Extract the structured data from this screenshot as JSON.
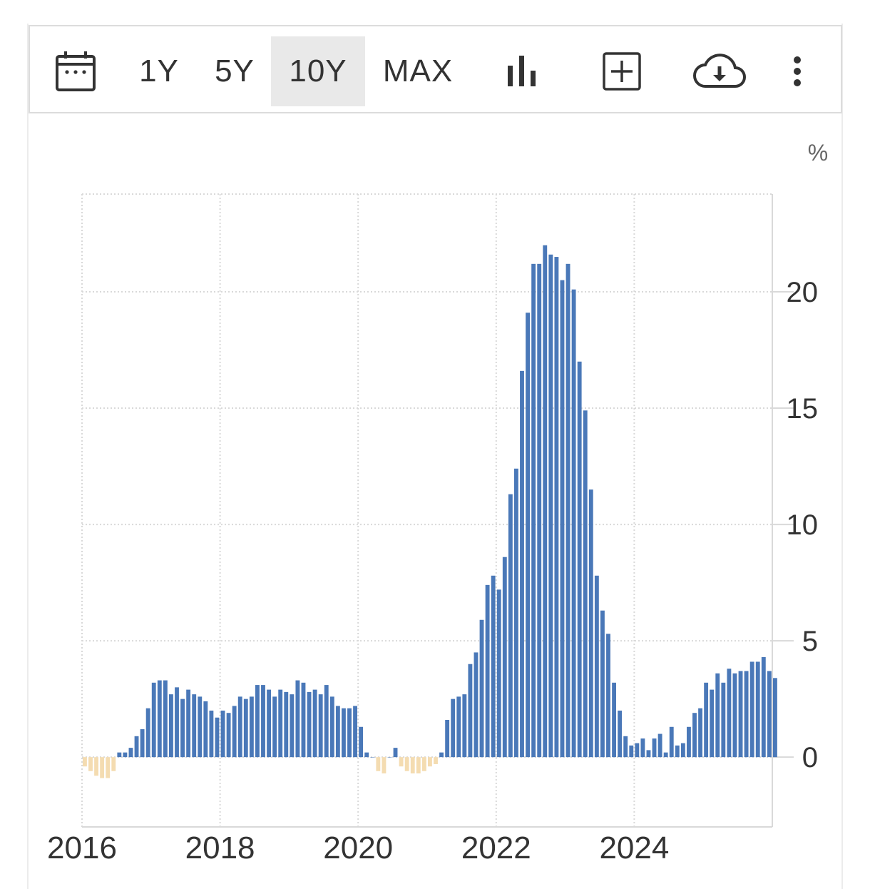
{
  "toolbar": {
    "ranges": [
      "1Y",
      "5Y",
      "10Y",
      "MAX"
    ],
    "active_range": "10Y",
    "icons": [
      "calendar-icon",
      "bar-chart-icon",
      "add-box-icon",
      "cloud-download-icon",
      "more-vertical-icon"
    ]
  },
  "colors": {
    "positive": "#4a78b8",
    "negative": "#f4dcb1",
    "grid": "#d9d9d9",
    "text": "#333333"
  },
  "chart_data": {
    "type": "bar",
    "unit": "%",
    "x_tick_labels": [
      "2016",
      "2018",
      "2020",
      "2022",
      "2024"
    ],
    "y_tick_labels": [
      "0",
      "5",
      "10",
      "15",
      "20"
    ],
    "ylim": [
      -3,
      24.2
    ],
    "xlim": [
      "2016-01",
      "2025-12"
    ],
    "grid": true,
    "start": "2016-01",
    "values": [
      -0.4,
      -0.6,
      -0.8,
      -0.9,
      -0.9,
      -0.6,
      0.2,
      0.2,
      0.4,
      0.9,
      1.2,
      2.1,
      3.2,
      3.3,
      3.3,
      2.7,
      3.0,
      2.5,
      2.9,
      2.7,
      2.6,
      2.4,
      2.0,
      1.7,
      2.0,
      1.9,
      2.2,
      2.6,
      2.5,
      2.6,
      3.1,
      3.1,
      2.9,
      2.6,
      2.9,
      2.8,
      2.7,
      3.3,
      3.2,
      2.8,
      2.9,
      2.7,
      3.1,
      2.6,
      2.2,
      2.1,
      2.1,
      2.2,
      1.3,
      0.2,
      0.0,
      -0.6,
      -0.7,
      0.0,
      0.4,
      -0.4,
      -0.6,
      -0.7,
      -0.7,
      -0.6,
      -0.4,
      -0.3,
      0.2,
      1.6,
      2.5,
      2.6,
      2.7,
      4.0,
      4.5,
      5.9,
      7.4,
      7.8,
      7.2,
      8.6,
      11.3,
      12.4,
      16.6,
      19.1,
      21.2,
      21.2,
      22.0,
      21.6,
      21.5,
      20.5,
      21.2,
      20.1,
      17.0,
      14.9,
      11.5,
      7.8,
      6.3,
      5.3,
      3.2,
      2.0,
      0.9,
      0.5,
      0.6,
      0.8,
      0.3,
      0.8,
      1.0,
      0.2,
      1.3,
      0.5,
      0.6,
      1.3,
      1.9,
      2.1,
      3.2,
      2.9,
      3.6,
      3.2,
      3.8,
      3.6,
      3.7,
      3.7,
      4.1,
      4.1,
      4.3,
      3.7,
      3.4
    ]
  }
}
